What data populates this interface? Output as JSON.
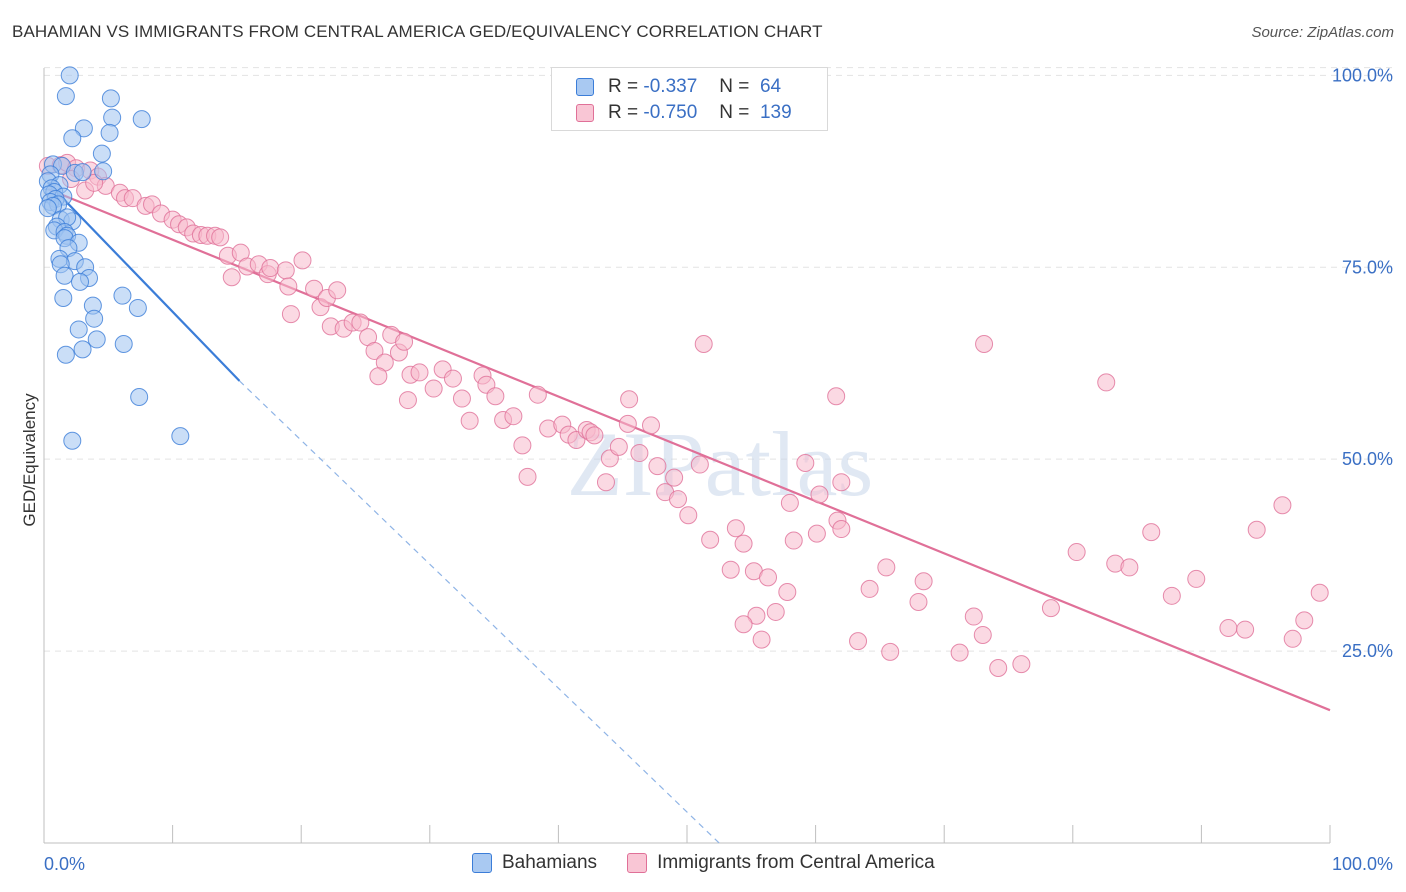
{
  "title": "BAHAMIAN VS IMMIGRANTS FROM CENTRAL AMERICA GED/EQUIVALENCY CORRELATION CHART",
  "source": "Source: ZipAtlas.com",
  "watermark": "ZIPatlas",
  "legend": {
    "rows": [
      {
        "r_label": "R =",
        "r_value": "-0.337",
        "n_label": "N =",
        "n_value": "64"
      },
      {
        "r_label": "R =",
        "r_value": "-0.750",
        "n_label": "N =",
        "n_value": "139"
      }
    ]
  },
  "colors": {
    "blue": "#3b7dd8",
    "blue_fill": "#9ec3f0",
    "pink": "#e07098",
    "pink_fill": "#f7b9cc",
    "tick_label": "#3a6fc4",
    "grid": "#e3e3e3"
  },
  "chart_data": {
    "type": "scatter",
    "title": "BAHAMIAN VS IMMIGRANTS FROM CENTRAL AMERICA GED/EQUIVALENCY CORRELATION CHART",
    "xlabel": "",
    "ylabel": "GED/Equivalency",
    "xlim": [
      0,
      100
    ],
    "ylim": [
      0,
      102
    ],
    "x_tick_labels": [
      "0.0%",
      "100.0%"
    ],
    "y_ticks": [
      25,
      50,
      75,
      100
    ],
    "y_tick_labels": [
      "25.0%",
      "50.0%",
      "75.0%",
      "100.0%"
    ],
    "grid": true,
    "legend_position": "bottom",
    "series": [
      {
        "name": "Bahamians",
        "r": -0.337,
        "n": 64,
        "trend": {
          "x": [
            0.3,
            15.2
          ],
          "y": [
            86.0,
            60.2
          ]
        },
        "trend_extension": {
          "x": [
            15.2,
            52.5
          ],
          "y": [
            60.2,
            0
          ]
        },
        "points": [
          [
            2.0,
            100.0
          ],
          [
            1.7,
            97.3
          ],
          [
            5.2,
            97.0
          ],
          [
            7.6,
            94.3
          ],
          [
            5.3,
            94.5
          ],
          [
            3.1,
            93.1
          ],
          [
            5.1,
            92.5
          ],
          [
            2.2,
            91.8
          ],
          [
            4.5,
            89.8
          ],
          [
            0.7,
            88.4
          ],
          [
            1.4,
            88.2
          ],
          [
            4.6,
            87.5
          ],
          [
            2.4,
            87.3
          ],
          [
            0.5,
            87.1
          ],
          [
            3.0,
            87.4
          ],
          [
            0.3,
            86.2
          ],
          [
            1.2,
            85.7
          ],
          [
            0.6,
            85.3
          ],
          [
            0.8,
            84.8
          ],
          [
            0.4,
            84.5
          ],
          [
            1.5,
            84.2
          ],
          [
            0.9,
            83.9
          ],
          [
            0.5,
            83.5
          ],
          [
            1.1,
            83.2
          ],
          [
            0.7,
            83.0
          ],
          [
            0.3,
            82.7
          ],
          [
            1.3,
            81.2
          ],
          [
            2.2,
            81.0
          ],
          [
            1.8,
            81.5
          ],
          [
            1.0,
            80.3
          ],
          [
            0.8,
            79.8
          ],
          [
            1.6,
            79.6
          ],
          [
            1.8,
            79.1
          ],
          [
            1.6,
            78.8
          ],
          [
            2.7,
            78.2
          ],
          [
            1.9,
            77.5
          ],
          [
            1.2,
            76.1
          ],
          [
            2.4,
            75.8
          ],
          [
            1.3,
            75.4
          ],
          [
            3.2,
            75.0
          ],
          [
            1.6,
            73.9
          ],
          [
            3.5,
            73.6
          ],
          [
            2.8,
            73.1
          ],
          [
            6.1,
            71.3
          ],
          [
            1.5,
            71.0
          ],
          [
            3.8,
            70.0
          ],
          [
            7.3,
            69.7
          ],
          [
            3.9,
            68.3
          ],
          [
            2.7,
            66.9
          ],
          [
            4.1,
            65.6
          ],
          [
            6.2,
            65.0
          ],
          [
            3.0,
            64.3
          ],
          [
            1.7,
            63.6
          ],
          [
            7.4,
            58.1
          ],
          [
            10.6,
            53.0
          ],
          [
            2.2,
            52.4
          ]
        ]
      },
      {
        "name": "Immigrants from Central America",
        "r": -0.75,
        "n": 139,
        "trend": {
          "x": [
            0.3,
            100.0
          ],
          "y": [
            85.2,
            17.3
          ]
        },
        "points": [
          [
            0.3,
            88.2
          ],
          [
            1.3,
            88.3
          ],
          [
            1.8,
            88.6
          ],
          [
            2.5,
            87.9
          ],
          [
            3.6,
            87.6
          ],
          [
            2.1,
            86.5
          ],
          [
            4.2,
            86.8
          ],
          [
            4.8,
            85.6
          ],
          [
            3.2,
            85.0
          ],
          [
            3.9,
            86.0
          ],
          [
            5.9,
            84.7
          ],
          [
            6.3,
            84.0
          ],
          [
            6.9,
            84.0
          ],
          [
            7.9,
            83.0
          ],
          [
            8.4,
            83.2
          ],
          [
            9.1,
            82.0
          ],
          [
            10.0,
            81.2
          ],
          [
            10.5,
            80.6
          ],
          [
            11.1,
            80.2
          ],
          [
            11.6,
            79.4
          ],
          [
            12.2,
            79.2
          ],
          [
            12.7,
            79.1
          ],
          [
            13.3,
            79.1
          ],
          [
            13.7,
            78.9
          ],
          [
            14.3,
            76.5
          ],
          [
            15.3,
            76.9
          ],
          [
            14.6,
            73.7
          ],
          [
            15.8,
            75.1
          ],
          [
            16.7,
            75.4
          ],
          [
            17.4,
            74.1
          ],
          [
            17.6,
            74.9
          ],
          [
            18.8,
            74.6
          ],
          [
            19.0,
            72.5
          ],
          [
            20.1,
            75.9
          ],
          [
            19.2,
            68.9
          ],
          [
            21.0,
            72.2
          ],
          [
            21.5,
            69.8
          ],
          [
            22.0,
            71.0
          ],
          [
            22.8,
            72.0
          ],
          [
            22.3,
            67.3
          ],
          [
            23.3,
            67.0
          ],
          [
            24.0,
            67.8
          ],
          [
            24.6,
            67.8
          ],
          [
            25.2,
            65.9
          ],
          [
            25.7,
            64.1
          ],
          [
            26.5,
            62.6
          ],
          [
            26.0,
            60.8
          ],
          [
            27.0,
            66.2
          ],
          [
            27.6,
            63.9
          ],
          [
            28.0,
            65.3
          ],
          [
            28.5,
            61.0
          ],
          [
            28.3,
            57.7
          ],
          [
            29.2,
            61.3
          ],
          [
            30.3,
            59.2
          ],
          [
            31.0,
            61.7
          ],
          [
            31.8,
            60.5
          ],
          [
            32.5,
            57.9
          ],
          [
            33.1,
            55.0
          ],
          [
            34.1,
            60.9
          ],
          [
            34.4,
            59.7
          ],
          [
            35.1,
            58.2
          ],
          [
            35.7,
            55.1
          ],
          [
            36.5,
            55.6
          ],
          [
            37.2,
            51.8
          ],
          [
            37.6,
            47.7
          ],
          [
            38.4,
            58.4
          ],
          [
            39.2,
            54.0
          ],
          [
            40.3,
            54.5
          ],
          [
            40.8,
            53.2
          ],
          [
            41.4,
            52.5
          ],
          [
            42.2,
            53.8
          ],
          [
            42.5,
            53.5
          ],
          [
            42.8,
            53.1
          ],
          [
            43.7,
            47.0
          ],
          [
            44.0,
            50.1
          ],
          [
            44.7,
            51.6
          ],
          [
            45.4,
            54.6
          ],
          [
            45.5,
            57.8
          ],
          [
            46.3,
            50.8
          ],
          [
            47.2,
            54.4
          ],
          [
            47.7,
            49.1
          ],
          [
            48.3,
            45.7
          ],
          [
            49.0,
            47.6
          ],
          [
            49.3,
            44.8
          ],
          [
            50.1,
            42.7
          ],
          [
            51.0,
            49.3
          ],
          [
            51.3,
            65.0
          ],
          [
            51.8,
            39.5
          ],
          [
            53.4,
            35.6
          ],
          [
            53.8,
            41.0
          ],
          [
            54.4,
            39.0
          ],
          [
            55.2,
            35.4
          ],
          [
            55.4,
            29.6
          ],
          [
            56.3,
            34.6
          ],
          [
            57.8,
            32.7
          ],
          [
            58.3,
            39.4
          ],
          [
            59.2,
            49.5
          ],
          [
            60.1,
            40.3
          ],
          [
            61.7,
            42.0
          ],
          [
            62.0,
            40.9
          ],
          [
            64.2,
            33.1
          ],
          [
            65.5,
            35.9
          ],
          [
            65.8,
            24.9
          ],
          [
            68.0,
            31.4
          ],
          [
            68.4,
            34.1
          ],
          [
            71.2,
            24.8
          ],
          [
            72.3,
            29.5
          ],
          [
            63.3,
            26.3
          ],
          [
            62.0,
            47.0
          ],
          [
            61.6,
            58.2
          ],
          [
            60.3,
            45.4
          ],
          [
            58.0,
            44.3
          ],
          [
            56.9,
            30.1
          ],
          [
            55.8,
            26.5
          ],
          [
            54.4,
            28.5
          ],
          [
            73.1,
            65.0
          ],
          [
            73.0,
            27.1
          ],
          [
            74.2,
            22.8
          ],
          [
            76.0,
            23.3
          ],
          [
            78.3,
            30.6
          ],
          [
            80.3,
            37.9
          ],
          [
            82.6,
            60.0
          ],
          [
            83.3,
            36.4
          ],
          [
            84.4,
            35.9
          ],
          [
            86.1,
            40.5
          ],
          [
            87.7,
            32.2
          ],
          [
            89.6,
            34.4
          ],
          [
            92.1,
            28.0
          ],
          [
            93.4,
            27.8
          ],
          [
            94.3,
            40.8
          ],
          [
            96.3,
            44.0
          ],
          [
            97.1,
            26.6
          ],
          [
            98.0,
            29.0
          ],
          [
            99.2,
            32.6
          ]
        ]
      }
    ]
  },
  "bottom_legend": {
    "items": [
      {
        "label": "Bahamians"
      },
      {
        "label": "Immigrants from Central America"
      }
    ]
  }
}
